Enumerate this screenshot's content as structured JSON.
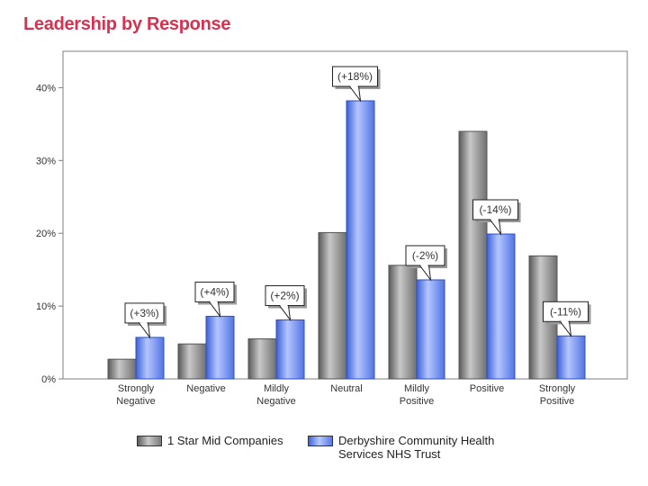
{
  "title": "Leadership by Response",
  "colors": {
    "title": "#d9304f",
    "series_gray": "#8a8a8a",
    "series_blue": "#6b8cf0"
  },
  "chart_data": {
    "type": "bar",
    "categories": [
      [
        "Strongly",
        "Negative"
      ],
      [
        "Negative"
      ],
      [
        "Mildly",
        "Negative"
      ],
      [
        "Neutral"
      ],
      [
        "Mildly",
        "Positive"
      ],
      [
        "Positive"
      ],
      [
        "Strongly",
        "Positive"
      ]
    ],
    "series": [
      {
        "name": "1 Star Mid Companies",
        "values": [
          2.7,
          4.8,
          5.5,
          20.1,
          15.6,
          34.0,
          16.9
        ]
      },
      {
        "name": "Derbyshire Community Health Services NHS Trust",
        "values": [
          5.7,
          8.6,
          8.1,
          38.2,
          13.6,
          19.9,
          5.9
        ]
      }
    ],
    "annotations": [
      "(+3%)",
      "(+4%)",
      "(+2%)",
      "(+18%)",
      "(-2%)",
      "(-14%)",
      "(-11%)"
    ],
    "yticks": [
      "0%",
      "10%",
      "20%",
      "30%",
      "40%"
    ],
    "ylim": [
      0,
      45
    ],
    "legend": "bottom"
  },
  "legend": {
    "item1": "1 Star Mid Companies",
    "item2_line1": "Derbyshire Community Health",
    "item2_line2": "Services NHS Trust"
  }
}
